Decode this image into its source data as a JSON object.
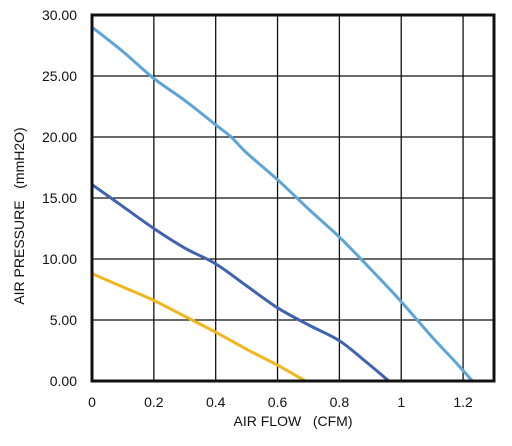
{
  "chart_data": {
    "type": "line",
    "xlabel": "AIR FLOW   (CFM)",
    "ylabel": "AIR PRESSURE   (mmH2O)",
    "xlim": [
      0,
      1.3
    ],
    "ylim": [
      0,
      30
    ],
    "x_ticks": [
      "0",
      "0.2",
      "0.4",
      "0.6",
      "0.8",
      "1",
      "1.2"
    ],
    "x_tick_values": [
      0,
      0.2,
      0.4,
      0.6,
      0.8,
      1.0,
      1.2
    ],
    "y_ticks": [
      "0.00",
      "5.00",
      "10.00",
      "15.00",
      "20.00",
      "25.00",
      "30.00"
    ],
    "y_tick_values": [
      0,
      5,
      10,
      15,
      20,
      25,
      30
    ],
    "grid": true,
    "legend": "none",
    "series": [
      {
        "color": "#5ea5d6",
        "points": [
          [
            0,
            29.0
          ],
          [
            0.1,
            27.0
          ],
          [
            0.2,
            24.8
          ],
          [
            0.3,
            23.0
          ],
          [
            0.4,
            21.0
          ],
          [
            0.45,
            20.0
          ],
          [
            0.5,
            18.7
          ],
          [
            0.6,
            16.5
          ],
          [
            0.7,
            14.1
          ],
          [
            0.8,
            11.8
          ],
          [
            0.9,
            9.2
          ],
          [
            1.0,
            6.5
          ],
          [
            1.1,
            3.6
          ],
          [
            1.17,
            1.7
          ],
          [
            1.23,
            0
          ]
        ]
      },
      {
        "color": "#3f63b0",
        "points": [
          [
            0,
            16.1
          ],
          [
            0.1,
            14.3
          ],
          [
            0.2,
            12.5
          ],
          [
            0.3,
            10.9
          ],
          [
            0.4,
            9.6
          ],
          [
            0.5,
            7.8
          ],
          [
            0.6,
            6.0
          ],
          [
            0.7,
            4.6
          ],
          [
            0.8,
            3.3
          ],
          [
            0.88,
            1.7
          ],
          [
            0.96,
            0
          ]
        ]
      },
      {
        "color": "#f2b61d",
        "points": [
          [
            0,
            8.8
          ],
          [
            0.1,
            7.7
          ],
          [
            0.2,
            6.6
          ],
          [
            0.3,
            5.3
          ],
          [
            0.4,
            4.0
          ],
          [
            0.5,
            2.6
          ],
          [
            0.6,
            1.3
          ],
          [
            0.69,
            0
          ]
        ]
      }
    ]
  }
}
